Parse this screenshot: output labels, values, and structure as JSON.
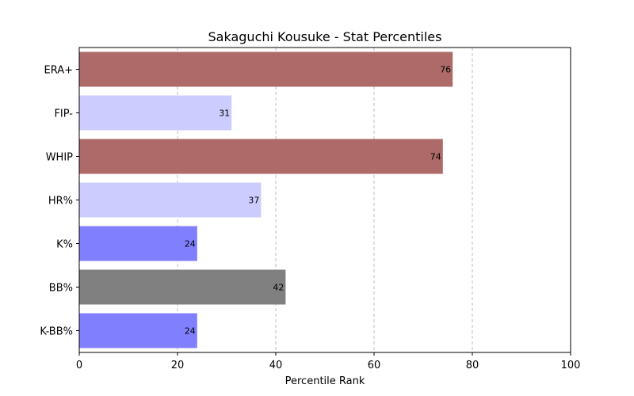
{
  "chart_data": {
    "type": "bar",
    "orientation": "horizontal",
    "title": "Sakaguchi Kousuke - Stat Percentiles",
    "xlabel": "Percentile Rank",
    "ylabel": "",
    "xlim": [
      0,
      100
    ],
    "xticks": [
      0,
      20,
      40,
      60,
      80,
      100
    ],
    "grid": "vertical dashed",
    "categories": [
      "ERA+",
      "FIP-",
      "WHIP",
      "HR%",
      "K%",
      "BB%",
      "K-BB%"
    ],
    "values": [
      76,
      31,
      74,
      37,
      24,
      42,
      24
    ],
    "colors": [
      "#ad6a68",
      "#ccccff",
      "#ad6a68",
      "#ccccff",
      "#8080ff",
      "#808080",
      "#8080ff"
    ]
  }
}
